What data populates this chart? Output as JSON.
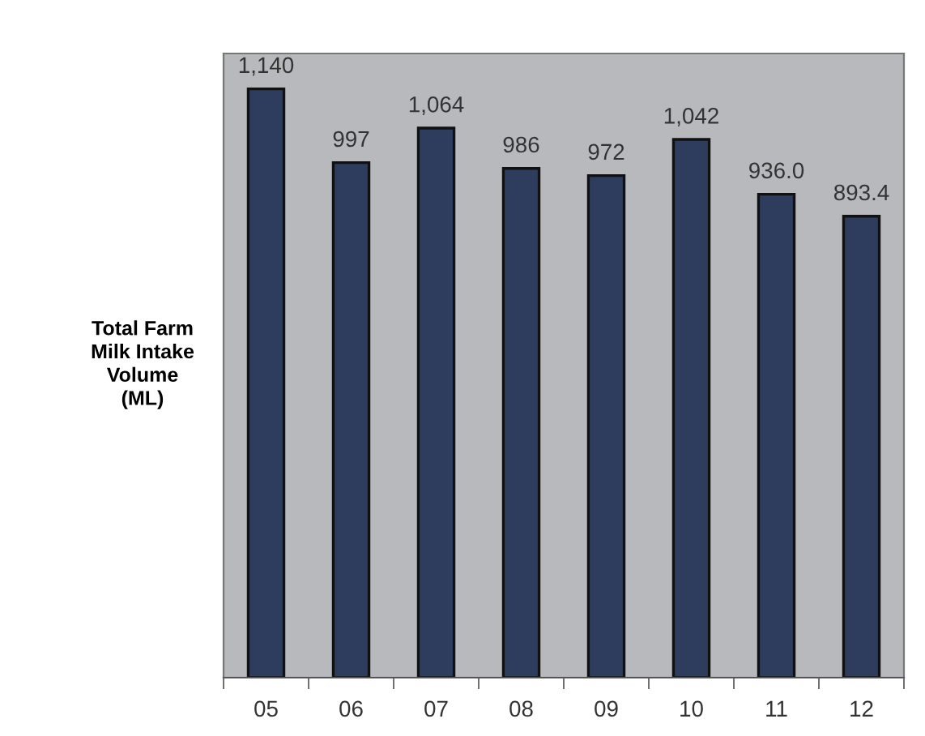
{
  "chart_data": {
    "type": "bar",
    "ylabel": "Total Farm\nMilk Intake\nVolume\n(ML)",
    "categories": [
      "05",
      "06",
      "07",
      "08",
      "09",
      "10",
      "11",
      "12"
    ],
    "values": [
      1140,
      997,
      1064,
      986,
      972,
      1042,
      936.0,
      893.4
    ],
    "value_labels": [
      "1,140",
      "997",
      "1,064",
      "986",
      "972",
      "1,042",
      "936.0",
      "893.4"
    ],
    "color": "#2e3d5e",
    "grid": false,
    "legend": false
  }
}
